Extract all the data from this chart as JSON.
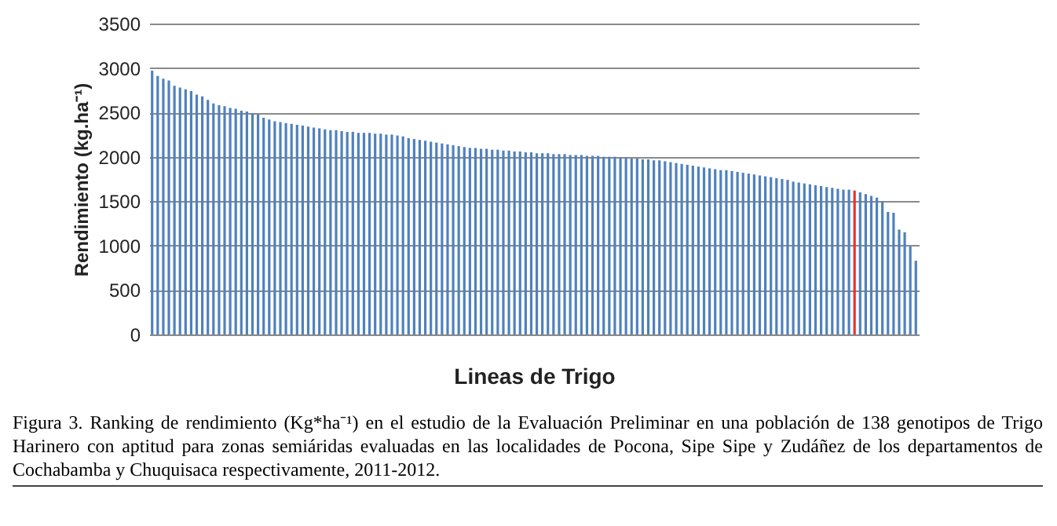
{
  "chart_data": {
    "type": "bar",
    "xlabel": "Lineas de Trigo",
    "ylabel": "Rendimiento (kg.ha⁻¹)",
    "categories": [
      null,
      null,
      null,
      null,
      null,
      null,
      null,
      null,
      null,
      null,
      null,
      null,
      null,
      null,
      null,
      null,
      null,
      null,
      null,
      null,
      null,
      null,
      null,
      null,
      null,
      null,
      null,
      null,
      null,
      null,
      null,
      null,
      null,
      null,
      null,
      null,
      null,
      null,
      null,
      null,
      null,
      null,
      null,
      null,
      null,
      null,
      null,
      null,
      null,
      null,
      null,
      null,
      null,
      null,
      null,
      null,
      null,
      null,
      null,
      null,
      null,
      null,
      null,
      null,
      null,
      null,
      null,
      null,
      null,
      null,
      null,
      null,
      null,
      null,
      null,
      null,
      null,
      null,
      null,
      null,
      null,
      null,
      null,
      null,
      null,
      null,
      null,
      null,
      null,
      null,
      null,
      null,
      null,
      null,
      null,
      null,
      null,
      null,
      null,
      null,
      null,
      null,
      null,
      null,
      null,
      null,
      null,
      null,
      null,
      null,
      null,
      null,
      null,
      null,
      null,
      null,
      null,
      null,
      null,
      null,
      null,
      null,
      null,
      null,
      null,
      null,
      null,
      null,
      null,
      null,
      null,
      null,
      null,
      null,
      null,
      null,
      null,
      null
    ],
    "values": [
      2970,
      2910,
      2880,
      2860,
      2800,
      2780,
      2760,
      2740,
      2700,
      2680,
      2640,
      2600,
      2580,
      2570,
      2550,
      2540,
      2520,
      2510,
      2490,
      2480,
      2440,
      2420,
      2400,
      2390,
      2380,
      2370,
      2360,
      2350,
      2340,
      2330,
      2320,
      2310,
      2300,
      2300,
      2290,
      2280,
      2280,
      2270,
      2270,
      2270,
      2260,
      2260,
      2250,
      2250,
      2240,
      2230,
      2210,
      2200,
      2190,
      2180,
      2170,
      2160,
      2150,
      2140,
      2130,
      2120,
      2110,
      2100,
      2100,
      2090,
      2090,
      2080,
      2080,
      2070,
      2070,
      2060,
      2060,
      2050,
      2050,
      2040,
      2040,
      2040,
      2030,
      2030,
      2030,
      2020,
      2020,
      2020,
      2010,
      2010,
      2010,
      2000,
      2000,
      2000,
      1990,
      1990,
      1980,
      1980,
      1970,
      1970,
      1960,
      1960,
      1950,
      1940,
      1930,
      1920,
      1910,
      1900,
      1890,
      1880,
      1870,
      1860,
      1850,
      1850,
      1840,
      1830,
      1820,
      1810,
      1800,
      1790,
      1780,
      1770,
      1760,
      1750,
      1740,
      1720,
      1710,
      1700,
      1690,
      1680,
      1670,
      1660,
      1650,
      1640,
      1630,
      1630,
      1620,
      1600,
      1580,
      1560,
      1540,
      1500,
      1380,
      1370,
      1180,
      1150,
      990,
      830
    ],
    "colors": [
      "#4f81bd",
      "#4f81bd",
      "#4f81bd",
      "#4f81bd",
      "#4f81bd",
      "#4f81bd",
      "#4f81bd",
      "#4f81bd",
      "#4f81bd",
      "#4f81bd",
      "#4f81bd",
      "#4f81bd",
      "#4f81bd",
      "#4f81bd",
      "#4f81bd",
      "#4f81bd",
      "#4f81bd",
      "#4f81bd",
      "#4f81bd",
      "#4f81bd",
      "#4f81bd",
      "#4f81bd",
      "#4f81bd",
      "#4f81bd",
      "#4f81bd",
      "#4f81bd",
      "#4f81bd",
      "#4f81bd",
      "#4f81bd",
      "#4f81bd",
      "#4f81bd",
      "#4f81bd",
      "#4f81bd",
      "#4f81bd",
      "#4f81bd",
      "#4f81bd",
      "#4f81bd",
      "#4f81bd",
      "#4f81bd",
      "#4f81bd",
      "#4f81bd",
      "#4f81bd",
      "#4f81bd",
      "#4f81bd",
      "#4f81bd",
      "#4f81bd",
      "#4f81bd",
      "#4f81bd",
      "#4f81bd",
      "#4f81bd",
      "#4f81bd",
      "#4f81bd",
      "#4f81bd",
      "#4f81bd",
      "#4f81bd",
      "#4f81bd",
      "#4f81bd",
      "#4f81bd",
      "#4f81bd",
      "#4f81bd",
      "#4f81bd",
      "#4f81bd",
      "#4f81bd",
      "#4f81bd",
      "#4f81bd",
      "#4f81bd",
      "#4f81bd",
      "#4f81bd",
      "#4f81bd",
      "#4f81bd",
      "#4f81bd",
      "#4f81bd",
      "#4f81bd",
      "#4f81bd",
      "#4f81bd",
      "#4f81bd",
      "#4f81bd",
      "#4f81bd",
      "#4f81bd",
      "#4f81bd",
      "#4f81bd",
      "#4f81bd",
      "#4f81bd",
      "#4f81bd",
      "#4f81bd",
      "#4f81bd",
      "#4f81bd",
      "#4f81bd",
      "#4f81bd",
      "#4f81bd",
      "#4f81bd",
      "#4f81bd",
      "#4f81bd",
      "#4f81bd",
      "#4f81bd",
      "#4f81bd",
      "#4f81bd",
      "#4f81bd",
      "#4f81bd",
      "#4f81bd",
      "#4f81bd",
      "#4f81bd",
      "#4f81bd",
      "#4f81bd",
      "#4f81bd",
      "#4f81bd",
      "#4f81bd",
      "#4f81bd",
      "#4f81bd",
      "#4f81bd",
      "#4f81bd",
      "#4f81bd",
      "#4f81bd",
      "#4f81bd",
      "#4f81bd",
      "#4f81bd",
      "#4f81bd",
      "#4f81bd",
      "#4f81bd",
      "#4f81bd",
      "#4f81bd",
      "#4f81bd",
      "#4f81bd",
      "#4f81bd",
      "#4f81bd",
      "#4f81bd",
      "#e8312a",
      "#4f81bd",
      "#4f81bd",
      "#4f81bd",
      "#4f81bd",
      "#4f81bd",
      "#4f81bd",
      "#4f81bd",
      "#4f81bd",
      "#4f81bd",
      "#4f81bd",
      "#4f81bd"
    ],
    "ylim": [
      0,
      3500
    ],
    "yticks": [
      0,
      500,
      1000,
      1500,
      2000,
      2500,
      3000,
      3500
    ],
    "grid": "y",
    "tick_labels": "y",
    "annotations": [
      "Figura 3. Ranking de rendimiento (Kg*ha⁻¹) en el estudio de la Evaluación Preliminar en una población de 138 genotipos de Trigo Harinero con aptitud para zonas semiáridas evaluadas en las localidades de Pocona, Sipe Sipe y Zudáñez de los departamentos de Cochabamba y Chuquisaca respectivamente, 2011-2012."
    ]
  }
}
